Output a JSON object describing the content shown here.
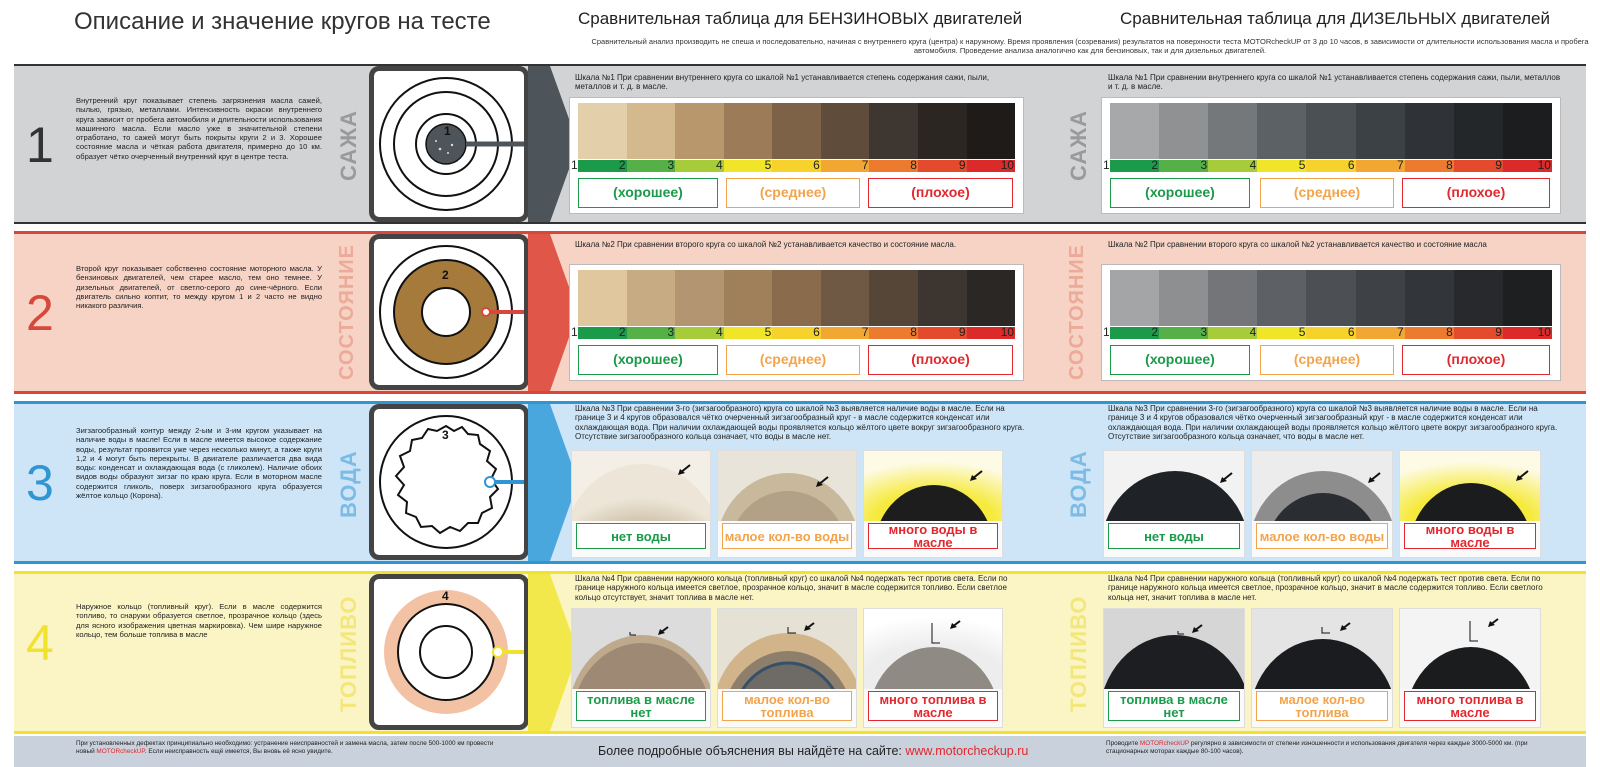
{
  "header": {
    "left_title": "Описание и значение кругов на тесте",
    "mid_title": "Сравнительная таблица для  БЕНЗИНОВЫХ двигателей",
    "right_title": "Сравнительная таблица для  ДИЗЕЛЬНЫХ двигателей",
    "note": "Сравнительный анализ производить не спеша и последовательно, начиная с внутреннего круга (центра) к наружному. Время проявления (созревания) результатов на поверхности теста MOTORcheckUP от 3 до 10 часов, в зависимости от длительности использования масла и пробега автомобиля. Проведение анализа аналогично как для бензиновых, так и для дизельных двигателей."
  },
  "colors": {
    "row1": "#d2d3d4",
    "row2": "#f6d3c5",
    "row3": "#cde5f7",
    "row4": "#fbf5c6",
    "good": "#1b9a4a",
    "medium": "#f3a34a",
    "bad": "#e0282e"
  },
  "rows": [
    {
      "number": "1",
      "vertical_label": "САЖА",
      "description": "Внутренний круг показывает степень загрязнения масла сажей, пылью, грязью, металлами. Интенсивность окраски внутреннего круга зависит от пробега автомобиля и длительности использования машинного масла. Если масло уже в значительной степени отработано, то сажей могут быть покрыты круги 2 и 3. Хорошее состояние масла и чёткая работа двигателя, примерно до 10 км. образует чётко очерченный внутренний круг в центре теста.",
      "circle_label": "1",
      "petrol_title": "Шкала №1 При сравнении внутреннего круга со шкалой №1 устанавливается степень содержания сажи, пыли, металлов и т. д. в масле.",
      "diesel_title": "Шкала №1 При сравнении внутреннего круга со шкалой №1 устанавливается степень содержания сажи, пыли, металлов и т. д. в масле."
    },
    {
      "number": "2",
      "vertical_label": "СОСТОЯНИЕ",
      "description": "Второй круг показывает собственно состояние моторного масла. У бензиновых двигателей, чем старее масло, тем оно темнее. У дизельных двигателей, от светло-серого до сине-чёрного. Если двигатель сильно коптит, то между кругом 1 и 2 часто не видно никакого различия.",
      "circle_label": "2",
      "petrol_title": "Шкала №2 При сравнении второго круга со шкалой №2 устанавливается качество и состояние масла.",
      "diesel_title": "Шкала №2 При сравнении второго круга со шкалой №2 устанавливается качество и состояние масла"
    },
    {
      "number": "3",
      "vertical_label": "ВОДА",
      "description": "Зигзагообразный контур между 2-ым и 3-им кругом указывает на наличие воды в масле! Если в масле имеется высокое содержание воды, результат проявится уже через несколько минут, а также круги 1,2 и 4 могут быть перекрыты. В двигателе различается два вида воды: конденсат и охлаждающая вода (с гликолем). Наличие обоих видов воды образуют зигзаг по краю круга. Если в моторном масле содержится гликоль, поверх зигзагообразного круга образуется жёлтое кольцо (Корона).",
      "circle_label": "3",
      "petrol_title": "Шкала №3 При сравнении 3-го (зигзагообразного) круга со шкалой №3 выявляется наличие воды в масле. Если на границе 3 и 4 кругов образовался чётко очерченный зигзагообразный круг - в масле содержится конденсат или охлаждающая вода. При наличии охлаждающей воды проявляется кольцо жёлтого цвете вокруг зигзагообразного круга. Отсутствие зигзагообразного кольца означает, что воды в масле нет.",
      "diesel_title": "Шкала №3 При сравнении 3-го (зигзагообразного) круга со шкалой №3 выявляется наличие воды в масле. Если на границе 3 и 4 кругов образовался чётко очерченный зигзагообразный круг - в масле содержится конденсат или охлаждающая вода. При наличии охлаждающей воды проявляется кольцо жёлтого цвете вокруг зигзагообразного круга. Отсутствие зигзагообразного кольца означает, что воды в масле нет.",
      "labels": [
        "нет воды",
        "малое кол-во воды",
        "много воды в масле"
      ]
    },
    {
      "number": "4",
      "vertical_label": "ТОПЛИВО",
      "description": "Наружное кольцо (топливный круг). Если в масле содержится топливо, то снаружи образуется светлое, прозрачное кольцо (здесь для ясного изображения цветная маркировка). Чем шире наружное кольцо, тем больше топлива в масле",
      "circle_label": "4",
      "petrol_title": "Шкала №4  При сравнении наружного кольца (топливный круг) со шкалой №4 подержать тест против света. Если по границе наружного кольца имеется светлое, прозрачное кольцо, значит в масле содержится топливо. Если светлое кольцо отсутствует, значит топлива в масле нет.",
      "diesel_title": "Шкала №4  При сравнении наружного кольца (топливный круг) со шкалой №4 подержать тест против света. Если по границе наружного кольца имеется светлое, прозрачное кольцо, значит в масле содержится топливо. Если светлого кольца нет, значит топлива в масле нет.",
      "labels": [
        "топлива в масле нет",
        "малое кол-во топлива",
        "много топлива в масле"
      ]
    }
  ],
  "scale": {
    "numbers": [
      "1",
      "2",
      "3",
      "4",
      "5",
      "6",
      "7",
      "8",
      "9",
      "10"
    ],
    "good": "(хорошее)",
    "medium": "(среднее)",
    "bad": "(плохое)"
  },
  "footer": {
    "left_a": "При установленных дефектах принципиально необходимо: устранение неисправностей и замена масла, затем после 500-1000 км провести новый ",
    "left_brand": "MOTORcheckUP",
    "left_b": ". Если неисправность ещё имеется, Вы вновь её ясно увидите.",
    "mid_text": "Более подробные объяснения вы найдёте на сайте: ",
    "mid_link": "www.motorcheckup.ru",
    "right_a": "Проводите ",
    "right_brand": "MOTORcheckUP",
    "right_b": " регулярно в зависимости от степени изношенности и использования двигателя через каждые 3000-5000 км. (при стационарных моторах каждые 80-100 часов)."
  }
}
